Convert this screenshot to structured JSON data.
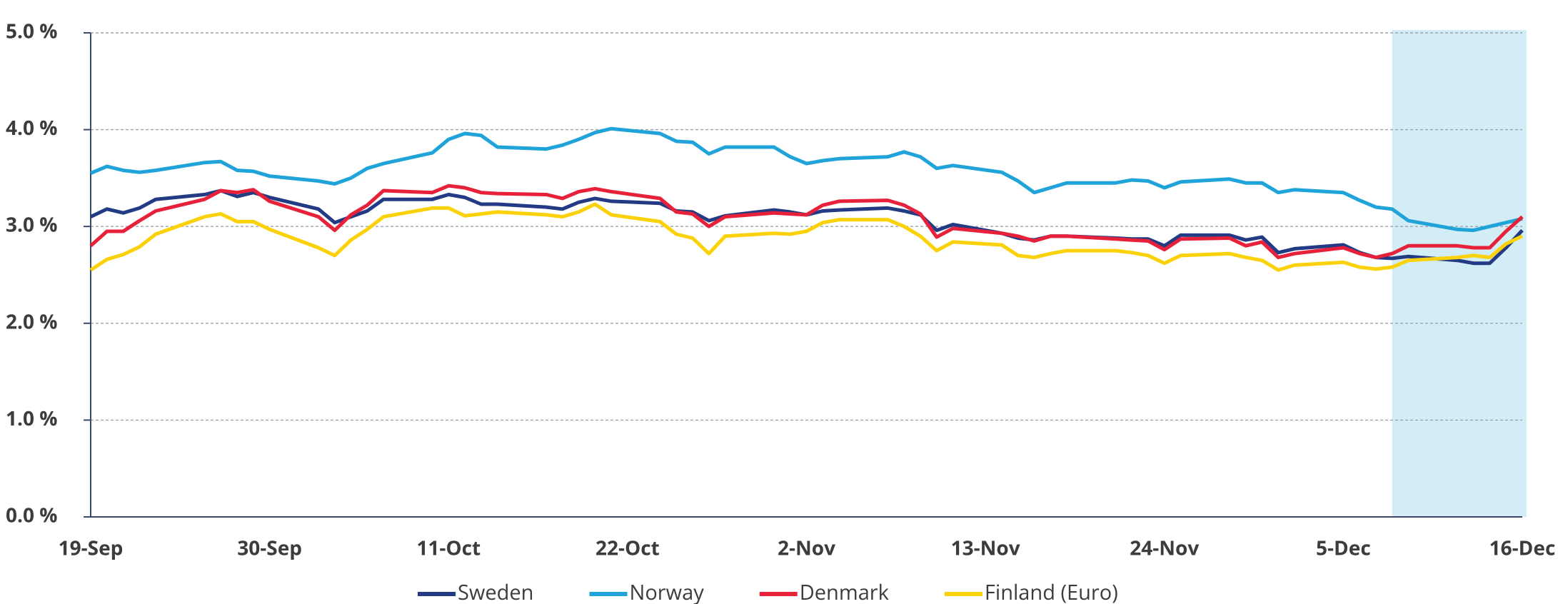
{
  "chart_data": {
    "type": "line",
    "x": [
      "19-Sep",
      "20-Sep",
      "21-Sep",
      "22-Sep",
      "23-Sep",
      "26-Sep",
      "27-Sep",
      "28-Sep",
      "29-Sep",
      "30-Sep",
      "3-Oct",
      "4-Oct",
      "5-Oct",
      "6-Oct",
      "7-Oct",
      "10-Oct",
      "11-Oct",
      "12-Oct",
      "13-Oct",
      "14-Oct",
      "17-Oct",
      "18-Oct",
      "19-Oct",
      "20-Oct",
      "21-Oct",
      "24-Oct",
      "25-Oct",
      "26-Oct",
      "27-Oct",
      "28-Oct",
      "31-Oct",
      "1-Nov",
      "2-Nov",
      "3-Nov",
      "4-Nov",
      "7-Nov",
      "8-Nov",
      "9-Nov",
      "10-Nov",
      "11-Nov",
      "14-Nov",
      "15-Nov",
      "16-Nov",
      "17-Nov",
      "18-Nov",
      "21-Nov",
      "22-Nov",
      "23-Nov",
      "24-Nov",
      "25-Nov",
      "28-Nov",
      "29-Nov",
      "30-Nov",
      "1-Dec",
      "2-Dec",
      "5-Dec",
      "6-Dec",
      "7-Dec",
      "8-Dec",
      "9-Dec",
      "12-Dec",
      "13-Dec",
      "14-Dec",
      "15-Dec",
      "16-Dec"
    ],
    "series": [
      {
        "name": "Sweden",
        "color": "#233a84",
        "values": [
          3.1,
          3.18,
          3.14,
          3.19,
          3.28,
          3.33,
          3.37,
          3.31,
          3.35,
          3.3,
          3.18,
          3.04,
          3.1,
          3.16,
          3.28,
          3.28,
          3.33,
          3.3,
          3.23,
          3.23,
          3.2,
          3.18,
          3.25,
          3.29,
          3.26,
          3.24,
          3.16,
          3.15,
          3.06,
          3.11,
          3.17,
          3.15,
          3.12,
          3.16,
          3.17,
          3.19,
          3.16,
          3.12,
          2.96,
          3.02,
          2.93,
          2.88,
          2.86,
          2.9,
          2.9,
          2.88,
          2.87,
          2.87,
          2.8,
          2.91,
          2.91,
          2.86,
          2.89,
          2.73,
          2.77,
          2.81,
          2.73,
          2.68,
          2.67,
          2.69,
          2.65,
          2.62,
          2.62,
          2.78,
          2.96
        ]
      },
      {
        "name": "Norway",
        "color": "#1fa3d8",
        "values": [
          3.55,
          3.62,
          3.58,
          3.56,
          3.58,
          3.66,
          3.67,
          3.58,
          3.57,
          3.52,
          3.47,
          3.44,
          3.5,
          3.6,
          3.65,
          3.76,
          3.9,
          3.96,
          3.94,
          3.82,
          3.8,
          3.84,
          3.9,
          3.97,
          4.01,
          3.96,
          3.88,
          3.87,
          3.75,
          3.82,
          3.82,
          3.72,
          3.65,
          3.68,
          3.7,
          3.72,
          3.77,
          3.72,
          3.6,
          3.63,
          3.56,
          3.47,
          3.35,
          3.4,
          3.45,
          3.45,
          3.48,
          3.47,
          3.4,
          3.46,
          3.49,
          3.45,
          3.45,
          3.35,
          3.38,
          3.35,
          3.27,
          3.2,
          3.18,
          3.06,
          2.97,
          2.96,
          3.0,
          3.04,
          3.08
        ]
      },
      {
        "name": "Denmark",
        "color": "#e8213a",
        "values": [
          2.8,
          2.95,
          2.95,
          3.06,
          3.16,
          3.28,
          3.37,
          3.35,
          3.38,
          3.26,
          3.1,
          2.96,
          3.12,
          3.22,
          3.37,
          3.35,
          3.42,
          3.4,
          3.35,
          3.34,
          3.33,
          3.29,
          3.36,
          3.39,
          3.36,
          3.29,
          3.15,
          3.13,
          3.0,
          3.1,
          3.14,
          3.13,
          3.12,
          3.22,
          3.26,
          3.27,
          3.22,
          3.13,
          2.89,
          2.98,
          2.93,
          2.9,
          2.85,
          2.9,
          2.9,
          2.87,
          2.86,
          2.85,
          2.76,
          2.87,
          2.88,
          2.8,
          2.84,
          2.68,
          2.72,
          2.78,
          2.72,
          2.68,
          2.72,
          2.8,
          2.8,
          2.78,
          2.78,
          2.95,
          3.1
        ]
      },
      {
        "name": "Finland (Euro)",
        "color": "#fbd20a",
        "values": [
          2.55,
          2.66,
          2.71,
          2.79,
          2.92,
          3.1,
          3.13,
          3.05,
          3.05,
          2.97,
          2.78,
          2.7,
          2.86,
          2.97,
          3.1,
          3.19,
          3.19,
          3.11,
          3.13,
          3.15,
          3.12,
          3.1,
          3.15,
          3.23,
          3.12,
          3.05,
          2.92,
          2.88,
          2.72,
          2.9,
          2.93,
          2.92,
          2.95,
          3.04,
          3.07,
          3.07,
          3.0,
          2.9,
          2.75,
          2.84,
          2.81,
          2.7,
          2.68,
          2.72,
          2.75,
          2.75,
          2.73,
          2.7,
          2.62,
          2.7,
          2.72,
          2.68,
          2.65,
          2.55,
          2.6,
          2.63,
          2.58,
          2.56,
          2.58,
          2.65,
          2.68,
          2.7,
          2.68,
          2.82,
          2.9
        ]
      }
    ],
    "xlim": [
      "19-Sep",
      "16-Dec"
    ],
    "xticks": [
      "19-Sep",
      "30-Sep",
      "11-Oct",
      "22-Oct",
      "2-Nov",
      "13-Nov",
      "24-Nov",
      "5-Dec",
      "16-Dec"
    ],
    "ylim": [
      0,
      5
    ],
    "yticks": [
      {
        "value": 0,
        "label": "0.0 %"
      },
      {
        "value": 1,
        "label": "1.0 %"
      },
      {
        "value": 2,
        "label": "2.0 %"
      },
      {
        "value": 3,
        "label": "3.0 %"
      },
      {
        "value": 4,
        "label": "4.0 %"
      },
      {
        "value": 5,
        "label": "5.0 %"
      }
    ],
    "grid": true,
    "highlight": {
      "range": [
        "8-Dec",
        "16-Dec"
      ],
      "color": "#d3edf6"
    },
    "legend": "bottom"
  }
}
